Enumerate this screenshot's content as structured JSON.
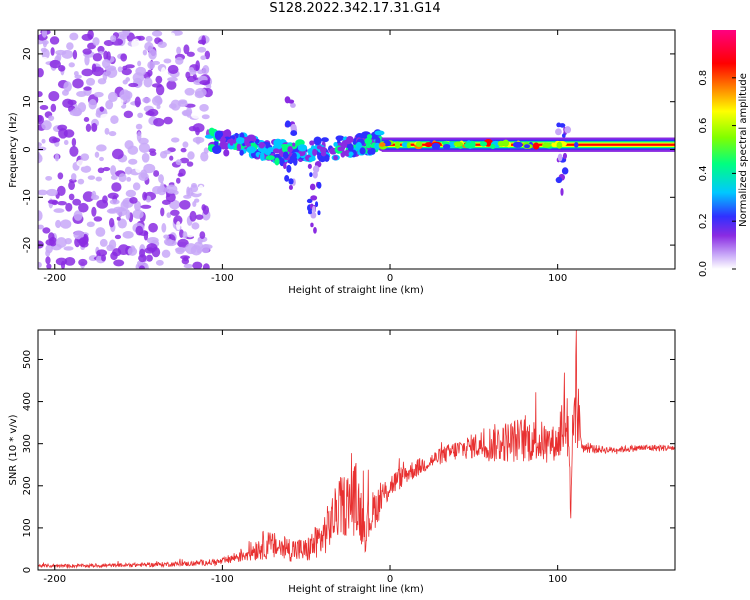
{
  "title": "S128.2022.342.17.31.G14",
  "chart_data": [
    {
      "type": "heatmap",
      "xlabel": "Height of straight line (km)",
      "ylabel": "Frequency (Hz)",
      "xlim": [
        -210,
        170
      ],
      "ylim": [
        -25,
        25
      ],
      "x_ticks": [
        -200,
        -100,
        0,
        100
      ],
      "y_ticks": [
        -20,
        -10,
        0,
        10,
        20
      ],
      "colorbar": {
        "label": "Normalized spectral amplitude",
        "range": [
          0,
          1
        ],
        "ticks": [
          0.0,
          0.2,
          0.4,
          0.6,
          0.8
        ],
        "colormap": [
          "#ffffff",
          "#c8a8f8",
          "#8a2be2",
          "#3030ff",
          "#00c8ff",
          "#00ff80",
          "#80ff00",
          "#ffff00",
          "#ff8000",
          "#ff0000",
          "#ff0080"
        ]
      },
      "regions": [
        {
          "x_range": [
            -210,
            -108
          ],
          "y_range": [
            -25,
            25
          ],
          "amplitude": 0.15,
          "pattern": "scattered noise"
        },
        {
          "x_range": [
            -108,
            -5
          ],
          "y_center": 2,
          "y_spread": 6,
          "amplitude": 0.35,
          "pattern": "blotchy signal"
        },
        {
          "x_range": [
            -5,
            170
          ],
          "y_center": 1,
          "y_spread": 1.5,
          "amplitude": 0.9,
          "pattern": "narrow carrier line"
        }
      ],
      "features": [
        {
          "x": -60,
          "y_range": [
            -8,
            11
          ],
          "note": "vertical excursion"
        },
        {
          "x": -45,
          "y_range": [
            -17,
            0
          ],
          "note": "downward streak"
        },
        {
          "x": 103,
          "y_range": [
            -10,
            6
          ],
          "note": "spike"
        }
      ]
    },
    {
      "type": "line",
      "xlabel": "Height of straight line (km)",
      "ylabel": "SNR (10 * v/v)",
      "xlim": [
        -210,
        170
      ],
      "ylim": [
        0,
        570
      ],
      "x_ticks": [
        -200,
        -100,
        0,
        100
      ],
      "y_ticks": [
        0,
        100,
        200,
        300,
        400,
        500
      ],
      "color": "#e83030",
      "series": [
        {
          "x": [
            -210,
            -180,
            -150,
            -120,
            -100,
            -85,
            -75,
            -60,
            -50,
            -40,
            -30,
            -20,
            -15,
            -10,
            0,
            10,
            20,
            30,
            40,
            50,
            60,
            70,
            80,
            90,
            100,
            105,
            108,
            110,
            115,
            130,
            150,
            170
          ],
          "y": [
            10,
            10,
            12,
            15,
            20,
            40,
            60,
            50,
            45,
            80,
            150,
            170,
            100,
            140,
            200,
            230,
            250,
            270,
            285,
            295,
            300,
            305,
            310,
            305,
            300,
            380,
            100,
            420,
            290,
            285,
            290,
            290
          ],
          "noise": [
            4,
            4,
            5,
            6,
            8,
            20,
            35,
            30,
            30,
            50,
            70,
            90,
            60,
            50,
            30,
            25,
            20,
            20,
            25,
            30,
            45,
            50,
            55,
            50,
            40,
            150,
            100,
            150,
            12,
            8,
            8,
            8
          ]
        }
      ]
    }
  ]
}
